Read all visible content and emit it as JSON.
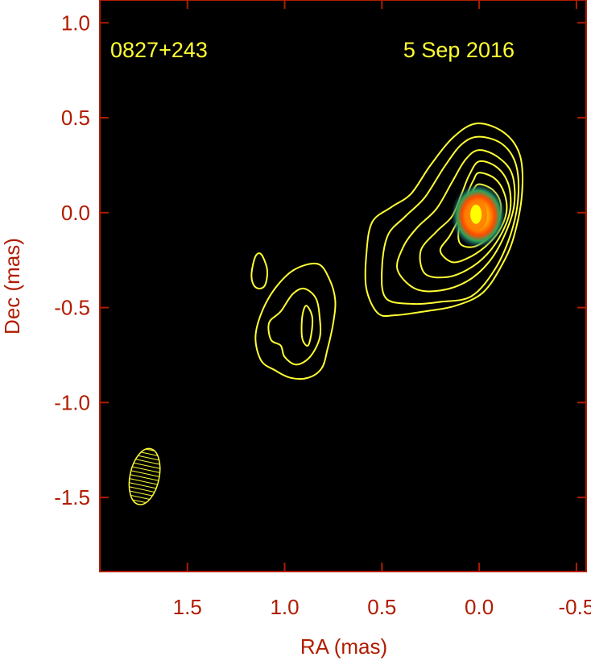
{
  "chart_data": {
    "type": "contour",
    "source_label": "0827+243",
    "date_label": "5 Sep 2016",
    "xlabel": "RA (mas)",
    "ylabel": "Dec (mas)",
    "xlim": [
      1.95,
      -0.55
    ],
    "ylim": [
      -1.89,
      1.12
    ],
    "x_ticks": [
      1.5,
      1.0,
      0.5,
      0.0,
      -0.5
    ],
    "x_tick_labels": [
      "1.5",
      "1.0",
      "0.5",
      "0.0",
      "-0.5"
    ],
    "y_ticks": [
      1.0,
      0.5,
      0.0,
      -0.5,
      -1.0,
      -1.5
    ],
    "y_tick_labels": [
      "1.0",
      "0.5",
      "0.0",
      "-0.5",
      "-1.0",
      "-1.5"
    ],
    "core": {
      "ra": 0.0,
      "dec": 0.0
    },
    "beam": {
      "ra": 1.72,
      "dec": -1.39,
      "major_mas": 0.3,
      "minor_mas": 0.15
    },
    "contours": [
      [
        [
          0.01,
          0.47
        ],
        [
          -0.13,
          0.42
        ],
        [
          -0.21,
          0.3
        ],
        [
          -0.22,
          0.1
        ],
        [
          -0.18,
          -0.12
        ],
        [
          -0.12,
          -0.27
        ],
        [
          -0.02,
          -0.42
        ],
        [
          0.12,
          -0.49
        ],
        [
          0.28,
          -0.52
        ],
        [
          0.43,
          -0.54
        ],
        [
          0.52,
          -0.53
        ],
        [
          0.58,
          -0.4
        ],
        [
          0.58,
          -0.22
        ],
        [
          0.55,
          -0.05
        ],
        [
          0.45,
          0.03
        ],
        [
          0.35,
          0.1
        ],
        [
          0.25,
          0.25
        ],
        [
          0.13,
          0.4
        ]
      ],
      [
        [
          0.0,
          0.4
        ],
        [
          -0.12,
          0.36
        ],
        [
          -0.19,
          0.25
        ],
        [
          -0.2,
          0.07
        ],
        [
          -0.16,
          -0.12
        ],
        [
          -0.08,
          -0.3
        ],
        [
          0.04,
          -0.44
        ],
        [
          0.2,
          -0.47
        ],
        [
          0.35,
          -0.48
        ],
        [
          0.48,
          -0.45
        ],
        [
          0.5,
          -0.3
        ],
        [
          0.47,
          -0.12
        ],
        [
          0.38,
          -0.02
        ],
        [
          0.28,
          0.08
        ],
        [
          0.18,
          0.24
        ],
        [
          0.09,
          0.36
        ]
      ],
      [
        [
          0.0,
          0.33
        ],
        [
          -0.1,
          0.29
        ],
        [
          -0.17,
          0.2
        ],
        [
          -0.18,
          0.04
        ],
        [
          -0.13,
          -0.12
        ],
        [
          -0.05,
          -0.26
        ],
        [
          0.06,
          -0.36
        ],
        [
          0.2,
          -0.41
        ],
        [
          0.33,
          -0.4
        ],
        [
          0.42,
          -0.3
        ],
        [
          0.39,
          -0.18
        ],
        [
          0.32,
          -0.08
        ],
        [
          0.22,
          0.02
        ],
        [
          0.14,
          0.16
        ],
        [
          0.07,
          0.28
        ]
      ],
      [
        [
          0.0,
          0.27
        ],
        [
          -0.09,
          0.24
        ],
        [
          -0.15,
          0.15
        ],
        [
          -0.16,
          0.02
        ],
        [
          -0.12,
          -0.1
        ],
        [
          -0.04,
          -0.22
        ],
        [
          0.06,
          -0.3
        ],
        [
          0.17,
          -0.34
        ],
        [
          0.28,
          -0.32
        ],
        [
          0.3,
          -0.2
        ],
        [
          0.22,
          -0.1
        ],
        [
          0.14,
          -0.02
        ],
        [
          0.09,
          0.1
        ],
        [
          0.05,
          0.2
        ]
      ],
      [
        [
          0.0,
          0.21
        ],
        [
          -0.08,
          0.18
        ],
        [
          -0.13,
          0.1
        ],
        [
          -0.14,
          0.0
        ],
        [
          -0.1,
          -0.1
        ],
        [
          -0.03,
          -0.18
        ],
        [
          0.06,
          -0.24
        ],
        [
          0.14,
          -0.26
        ],
        [
          0.2,
          -0.2
        ],
        [
          0.15,
          -0.12
        ],
        [
          0.1,
          -0.02
        ],
        [
          0.06,
          0.1
        ],
        [
          0.03,
          0.17
        ]
      ],
      [
        [
          0.0,
          0.15
        ],
        [
          -0.07,
          0.12
        ],
        [
          -0.11,
          0.05
        ],
        [
          -0.1,
          -0.05
        ],
        [
          -0.05,
          -0.13
        ],
        [
          0.03,
          -0.18
        ],
        [
          0.1,
          -0.16
        ],
        [
          0.1,
          -0.06
        ],
        [
          0.06,
          0.05
        ],
        [
          0.03,
          0.12
        ]
      ],
      [
        [
          1.17,
          -0.32
        ],
        [
          1.15,
          -0.23
        ],
        [
          1.12,
          -0.22
        ],
        [
          1.09,
          -0.3
        ],
        [
          1.1,
          -0.38
        ],
        [
          1.13,
          -0.4
        ],
        [
          1.16,
          -0.38
        ]
      ],
      [
        [
          0.83,
          -0.27
        ],
        [
          0.95,
          -0.3
        ],
        [
          1.05,
          -0.4
        ],
        [
          1.12,
          -0.53
        ],
        [
          1.15,
          -0.66
        ],
        [
          1.12,
          -0.78
        ],
        [
          1.05,
          -0.83
        ],
        [
          0.97,
          -0.87
        ],
        [
          0.88,
          -0.87
        ],
        [
          0.81,
          -0.82
        ],
        [
          0.78,
          -0.72
        ],
        [
          0.75,
          -0.58
        ],
        [
          0.74,
          -0.46
        ],
        [
          0.77,
          -0.35
        ]
      ],
      [
        [
          0.9,
          -0.4
        ],
        [
          0.84,
          -0.45
        ],
        [
          0.82,
          -0.55
        ],
        [
          0.82,
          -0.66
        ],
        [
          0.87,
          -0.76
        ],
        [
          0.94,
          -0.8
        ],
        [
          1.0,
          -0.76
        ],
        [
          1.02,
          -0.7
        ],
        [
          1.07,
          -0.67
        ],
        [
          1.08,
          -0.58
        ],
        [
          1.02,
          -0.52
        ],
        [
          0.96,
          -0.43
        ]
      ],
      [
        [
          0.89,
          -0.49
        ],
        [
          0.86,
          -0.54
        ],
        [
          0.86,
          -0.62
        ],
        [
          0.88,
          -0.7
        ],
        [
          0.91,
          -0.66
        ],
        [
          0.91,
          -0.55
        ]
      ]
    ],
    "colors": {
      "background": "#000000",
      "frame": "#b01c00",
      "ticks": "#b01c00",
      "contours": "#ffff33",
      "annotations": "#ffff33",
      "core_outer": "#2da35a",
      "core_mid": "#ff7a00",
      "core_inner": "#ffff00"
    }
  }
}
